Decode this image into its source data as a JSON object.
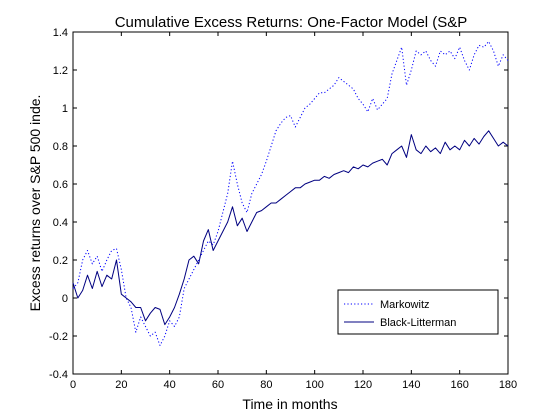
{
  "chart_data": {
    "type": "line",
    "title": "Cumulative Excess Returns: One-Factor Model (S&P",
    "xlabel": "Time in months",
    "ylabel": "Excess returns over S&P 500 inde.",
    "xlim": [
      0,
      180
    ],
    "ylim": [
      -0.4,
      1.4
    ],
    "xticks": [
      0,
      20,
      40,
      60,
      80,
      100,
      120,
      140,
      160,
      180
    ],
    "yticks": [
      -0.4,
      -0.2,
      0,
      0.2,
      0.4,
      0.6,
      0.8,
      1,
      1.2,
      1.4
    ],
    "xtick_labels": [
      "0",
      "20",
      "40",
      "60",
      "80",
      "100",
      "120",
      "140",
      "160",
      "180"
    ],
    "ytick_labels": [
      "-0.4",
      "-0.2",
      "0",
      "0.2",
      "0.4",
      "0.6",
      "0.8",
      "1",
      "1.2",
      "1.4"
    ],
    "grid": false,
    "legend_position": "lower-right",
    "series": [
      {
        "name": "Markowitz",
        "color": "#0000ff",
        "style": "dotted",
        "x": [
          0,
          2,
          4,
          6,
          8,
          10,
          12,
          14,
          16,
          18,
          20,
          22,
          24,
          26,
          28,
          30,
          32,
          34,
          36,
          38,
          40,
          42,
          44,
          46,
          48,
          50,
          52,
          54,
          56,
          58,
          60,
          62,
          64,
          66,
          68,
          70,
          72,
          74,
          76,
          78,
          80,
          82,
          84,
          86,
          88,
          90,
          92,
          94,
          96,
          98,
          100,
          102,
          104,
          106,
          108,
          110,
          112,
          114,
          116,
          118,
          120,
          122,
          124,
          126,
          128,
          130,
          132,
          134,
          136,
          138,
          140,
          142,
          144,
          146,
          148,
          150,
          152,
          154,
          156,
          158,
          160,
          162,
          164,
          166,
          168,
          170,
          172,
          174,
          176,
          178,
          180
        ],
        "values": [
          0.05,
          0.08,
          0.2,
          0.25,
          0.18,
          0.22,
          0.14,
          0.2,
          0.25,
          0.26,
          0.15,
          0.0,
          -0.05,
          -0.18,
          -0.1,
          -0.15,
          -0.2,
          -0.18,
          -0.25,
          -0.2,
          -0.12,
          -0.15,
          -0.1,
          0.05,
          0.1,
          0.15,
          0.2,
          0.25,
          0.3,
          0.28,
          0.35,
          0.45,
          0.55,
          0.72,
          0.6,
          0.5,
          0.45,
          0.55,
          0.6,
          0.65,
          0.72,
          0.8,
          0.88,
          0.92,
          0.95,
          0.96,
          0.9,
          0.95,
          1.0,
          1.02,
          1.05,
          1.08,
          1.08,
          1.1,
          1.12,
          1.16,
          1.14,
          1.12,
          1.1,
          1.05,
          1.02,
          0.98,
          1.05,
          0.99,
          1.02,
          1.05,
          1.18,
          1.25,
          1.32,
          1.12,
          1.2,
          1.3,
          1.28,
          1.3,
          1.25,
          1.22,
          1.3,
          1.28,
          1.3,
          1.26,
          1.32,
          1.25,
          1.2,
          1.28,
          1.33,
          1.32,
          1.35,
          1.3,
          1.22,
          1.28,
          1.25
        ]
      },
      {
        "name": "Black-Litterman",
        "color": "#000080",
        "style": "solid",
        "x": [
          0,
          2,
          4,
          6,
          8,
          10,
          12,
          14,
          16,
          18,
          20,
          22,
          24,
          26,
          28,
          30,
          32,
          34,
          36,
          38,
          40,
          42,
          44,
          46,
          48,
          50,
          52,
          54,
          56,
          58,
          60,
          62,
          64,
          66,
          68,
          70,
          72,
          74,
          76,
          78,
          80,
          82,
          84,
          86,
          88,
          90,
          92,
          94,
          96,
          98,
          100,
          102,
          104,
          106,
          108,
          110,
          112,
          114,
          116,
          118,
          120,
          122,
          124,
          126,
          128,
          130,
          132,
          134,
          136,
          138,
          140,
          142,
          144,
          146,
          148,
          150,
          152,
          154,
          156,
          158,
          160,
          162,
          164,
          166,
          168,
          170,
          172,
          174,
          176,
          178,
          180
        ],
        "values": [
          0.08,
          0.0,
          0.04,
          0.12,
          0.05,
          0.14,
          0.06,
          0.12,
          0.1,
          0.2,
          0.02,
          0.0,
          -0.02,
          -0.05,
          -0.05,
          -0.12,
          -0.08,
          -0.05,
          -0.06,
          -0.14,
          -0.1,
          -0.05,
          0.02,
          0.1,
          0.2,
          0.22,
          0.18,
          0.3,
          0.36,
          0.25,
          0.3,
          0.35,
          0.4,
          0.48,
          0.38,
          0.42,
          0.35,
          0.4,
          0.45,
          0.46,
          0.48,
          0.5,
          0.5,
          0.52,
          0.54,
          0.56,
          0.58,
          0.58,
          0.6,
          0.61,
          0.62,
          0.62,
          0.64,
          0.63,
          0.65,
          0.66,
          0.67,
          0.66,
          0.69,
          0.68,
          0.7,
          0.69,
          0.71,
          0.72,
          0.73,
          0.7,
          0.76,
          0.78,
          0.8,
          0.74,
          0.86,
          0.78,
          0.76,
          0.8,
          0.77,
          0.79,
          0.76,
          0.82,
          0.78,
          0.8,
          0.78,
          0.83,
          0.8,
          0.84,
          0.81,
          0.85,
          0.88,
          0.84,
          0.8,
          0.82,
          0.8
        ]
      }
    ]
  }
}
